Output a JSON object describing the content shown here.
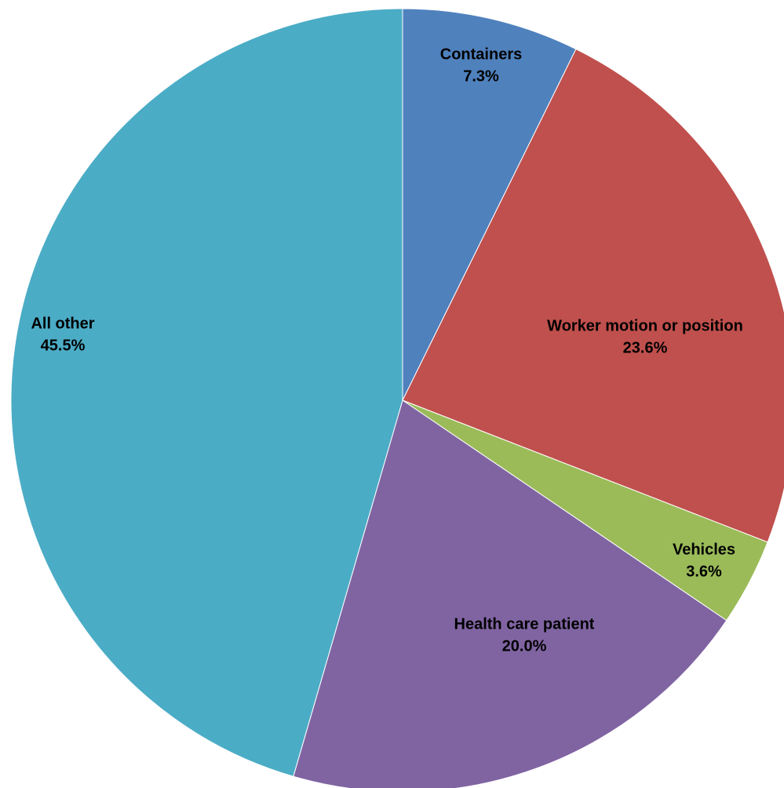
{
  "chart_data": {
    "type": "pie",
    "categories": [
      "Containers",
      "Worker motion or position",
      "Vehicles",
      "Health care patient",
      "All other"
    ],
    "values": [
      7.3,
      23.6,
      3.6,
      20.0,
      45.5
    ],
    "value_labels": [
      "7.3%",
      "23.6%",
      "3.6%",
      "20.0%",
      "45.5%"
    ],
    "colors": [
      "#4f81bd",
      "#c0504d",
      "#9bbb59",
      "#8064a2",
      "#4bacc6"
    ]
  }
}
